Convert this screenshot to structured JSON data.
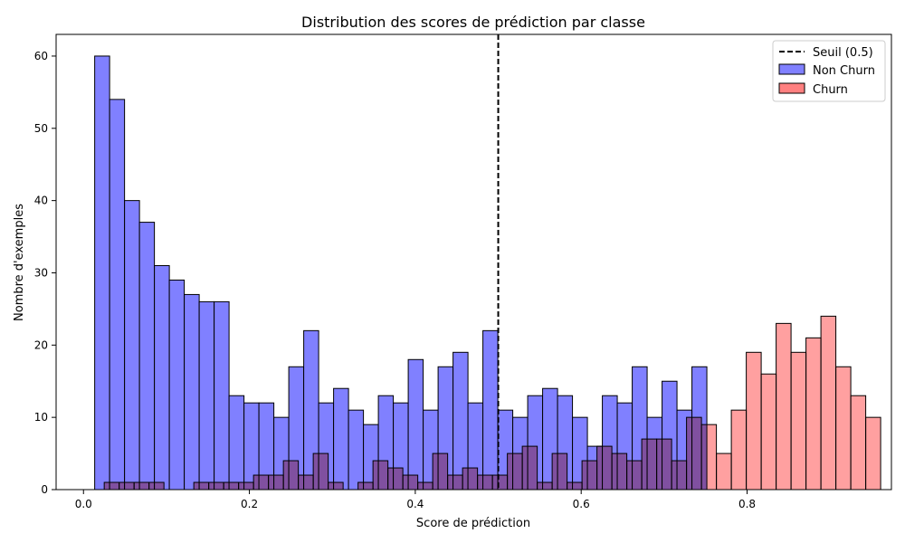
{
  "chart_data": {
    "type": "bar",
    "title": "Distribution des scores de prédiction par classe",
    "xlabel": "Score de prédiction",
    "ylabel": "Nombre d'exemples",
    "xlim": [
      -0.033,
      0.974
    ],
    "ylim": [
      0,
      63
    ],
    "x_ticks": [
      0.0,
      0.2,
      0.4,
      0.6,
      0.8
    ],
    "x_tick_labels": [
      "0.0",
      "0.2",
      "0.4",
      "0.6",
      "0.8"
    ],
    "y_ticks": [
      0,
      10,
      20,
      30,
      40,
      50,
      60
    ],
    "y_tick_labels": [
      "0",
      "10",
      "20",
      "30",
      "40",
      "50",
      "60"
    ],
    "grid": false,
    "legend_position": "top-right",
    "threshold": {
      "name": "Seuil (0.5)",
      "x": 0.5,
      "color": "#000000"
    },
    "series": [
      {
        "name": "Non Churn",
        "color": "#8080ff",
        "bin_start": 0.0135,
        "bin_width": 0.018,
        "values": [
          60,
          54,
          40,
          37,
          31,
          29,
          27,
          26,
          26,
          13,
          12,
          12,
          10,
          17,
          22,
          12,
          14,
          11,
          9,
          13,
          12,
          18,
          11,
          17,
          19,
          12,
          22,
          11,
          10,
          13,
          14,
          13,
          10,
          6,
          13,
          12,
          17,
          10,
          15,
          11,
          17
        ]
      },
      {
        "name": "Churn",
        "color": "#ff8080",
        "bin_start": 0.025,
        "bin_width": 0.018,
        "values": [
          1,
          1,
          1,
          1,
          0,
          0,
          1,
          1,
          1,
          1,
          2,
          2,
          4,
          2,
          5,
          1,
          0,
          1,
          4,
          3,
          2,
          1,
          5,
          2,
          3,
          2,
          2,
          5,
          6,
          1,
          5,
          1,
          4,
          6,
          5,
          4,
          7,
          7,
          4,
          10,
          9,
          5,
          11,
          19,
          16,
          23,
          19,
          21,
          24,
          17,
          13,
          10
        ]
      }
    ]
  }
}
